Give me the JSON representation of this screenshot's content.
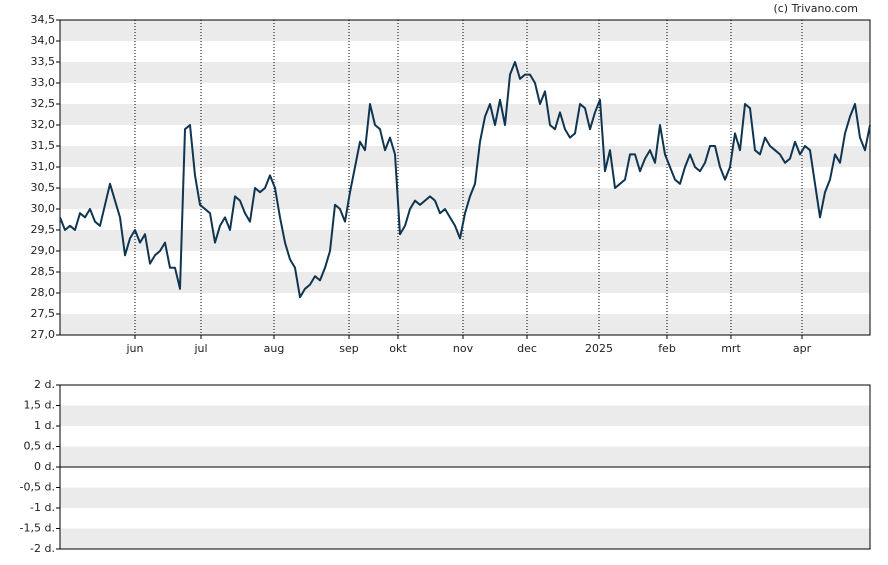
{
  "credit": "(c) Trivano.com",
  "chart_data": [
    {
      "type": "line",
      "xlim": [
        0,
        162
      ],
      "xticks": [
        {
          "value": 15,
          "label": "jun"
        },
        {
          "value": 28.2,
          "label": "jul"
        },
        {
          "value": 42.8,
          "label": "aug"
        },
        {
          "value": 57.8,
          "label": "sep"
        },
        {
          "value": 67.6,
          "label": "okt"
        },
        {
          "value": 80.6,
          "label": "nov"
        },
        {
          "value": 93.4,
          "label": "dec"
        },
        {
          "value": 107.8,
          "label": "2025"
        },
        {
          "value": 121.4,
          "label": "feb"
        },
        {
          "value": 134.2,
          "label": "mrt"
        },
        {
          "value": 148.4,
          "label": "apr"
        }
      ],
      "ylim": [
        27,
        34.5
      ],
      "yticks": [
        {
          "value": 27,
          "label": "27,0"
        },
        {
          "value": 27.5,
          "label": "27,5"
        },
        {
          "value": 28,
          "label": "28,0"
        },
        {
          "value": 28.5,
          "label": "28,5"
        },
        {
          "value": 29,
          "label": "29,0"
        },
        {
          "value": 29.5,
          "label": "29,5"
        },
        {
          "value": 30,
          "label": "30,0"
        },
        {
          "value": 30.5,
          "label": "30,5"
        },
        {
          "value": 31,
          "label": "31,0"
        },
        {
          "value": 31.5,
          "label": "31,5"
        },
        {
          "value": 32,
          "label": "32,0"
        },
        {
          "value": 32.5,
          "label": "32,5"
        },
        {
          "value": 33,
          "label": "33,0"
        },
        {
          "value": 33.5,
          "label": "33,5"
        },
        {
          "value": 34,
          "label": "34,0"
        },
        {
          "value": 34.5,
          "label": "34,5"
        }
      ],
      "grid": true,
      "color": "#0f3550",
      "values": [
        29.8,
        29.5,
        29.6,
        29.5,
        29.9,
        29.8,
        30.0,
        29.7,
        29.6,
        30.1,
        30.6,
        30.2,
        29.8,
        28.9,
        29.3,
        29.5,
        29.2,
        29.4,
        28.7,
        28.9,
        29.0,
        29.2,
        28.6,
        28.6,
        28.1,
        31.9,
        32.0,
        30.8,
        30.1,
        30.0,
        29.9,
        29.2,
        29.6,
        29.8,
        29.5,
        30.3,
        30.2,
        29.9,
        29.7,
        30.5,
        30.4,
        30.5,
        30.8,
        30.5,
        29.8,
        29.2,
        28.8,
        28.6,
        27.9,
        28.1,
        28.2,
        28.4,
        28.3,
        28.6,
        29.0,
        30.1,
        30.0,
        29.7,
        30.4,
        31.0,
        31.6,
        31.4,
        32.5,
        32.0,
        31.9,
        31.4,
        31.7,
        31.3,
        29.4,
        29.6,
        30.0,
        30.2,
        30.1,
        30.2,
        30.3,
        30.2,
        29.9,
        30.0,
        29.8,
        29.6,
        29.3,
        29.9,
        30.3,
        30.6,
        31.6,
        32.2,
        32.5,
        32.0,
        32.6,
        32.0,
        33.2,
        33.5,
        33.1,
        33.2,
        33.2,
        33.0,
        32.5,
        32.8,
        32.0,
        31.9,
        32.3,
        31.9,
        31.7,
        31.8,
        32.5,
        32.4,
        31.9,
        32.3,
        32.6,
        30.9,
        31.4,
        30.5,
        30.6,
        30.7,
        31.3,
        31.3,
        30.9,
        31.2,
        31.4,
        31.1,
        32.0,
        31.3,
        31.0,
        30.7,
        30.6,
        31.0,
        31.3,
        31.0,
        30.9,
        31.1,
        31.5,
        31.5,
        31.0,
        30.7,
        31.0,
        31.8,
        31.4,
        32.5,
        32.4,
        31.4,
        31.3,
        31.7,
        31.5,
        31.4,
        31.3,
        31.1,
        31.2,
        31.6,
        31.3,
        31.5,
        31.4,
        30.6,
        29.8,
        30.4,
        30.7,
        31.3,
        31.1,
        31.8,
        32.2,
        32.5,
        31.7,
        31.4,
        32.0
      ]
    },
    {
      "type": "line",
      "ylim": [
        -2,
        2
      ],
      "yticks": [
        {
          "value": -2,
          "label": "-2 d."
        },
        {
          "value": -1.5,
          "label": "-1,5 d."
        },
        {
          "value": -1,
          "label": "-1 d."
        },
        {
          "value": -0.5,
          "label": "-0,5 d."
        },
        {
          "value": 0,
          "label": "0 d."
        },
        {
          "value": 0.5,
          "label": "0,5 d."
        },
        {
          "value": 1,
          "label": "1 d."
        },
        {
          "value": 1.5,
          "label": "1,5 d."
        },
        {
          "value": 2,
          "label": "2 d."
        }
      ],
      "grid": true
    }
  ]
}
